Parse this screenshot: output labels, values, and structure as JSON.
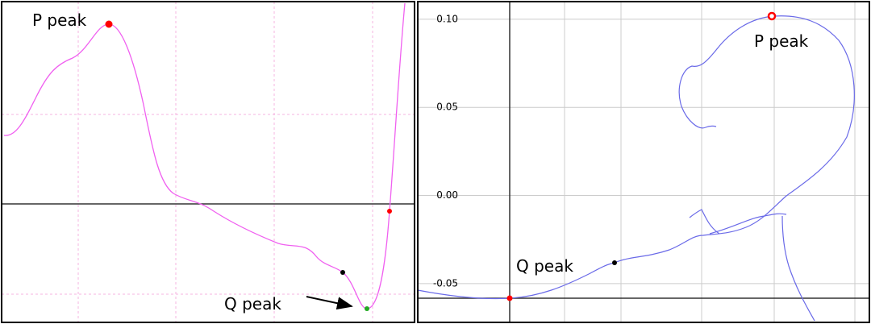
{
  "left_panel": {
    "annotations": [
      "P peak",
      "Q peak"
    ]
  },
  "right_panel": {
    "annotations": [
      "P peak",
      "Q peak"
    ],
    "ylim": [
      -0.072,
      0.11
    ],
    "yticks": [
      {
        "value": 0.1,
        "label": "0.10"
      },
      0.05,
      {
        "value": 0,
        "label": "0.00"
      },
      -0.05
    ],
    "grid": true
  }
}
